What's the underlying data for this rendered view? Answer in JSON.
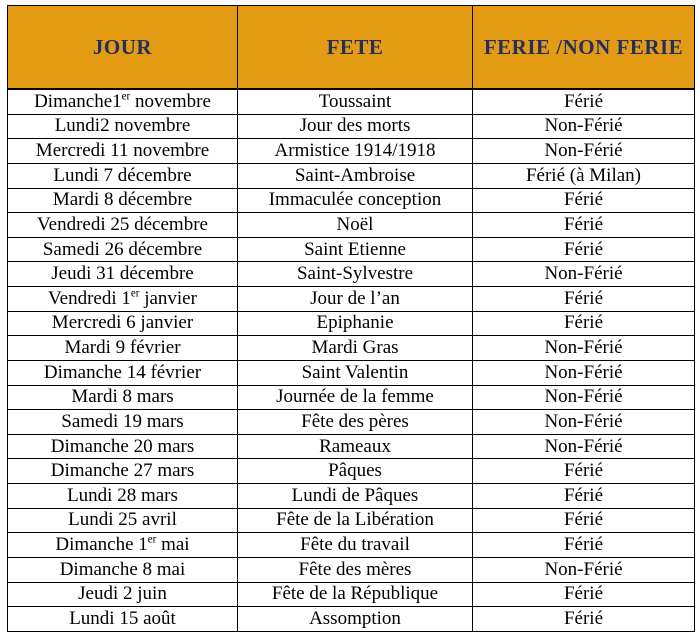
{
  "colors": {
    "header_bg": "#E49B14",
    "header_text": "#232F5E",
    "border": "#000000",
    "body_text": "#000000",
    "page_bg": "#ffffff"
  },
  "table": {
    "header": {
      "columns": [
        {
          "label": "JOUR"
        },
        {
          "label": "FETE"
        },
        {
          "label": "FERIE /NON FERIE"
        }
      ]
    },
    "rows": [
      {
        "jour": "Dimanche1^{er} novembre",
        "fete": "Toussaint",
        "statut": "Férié"
      },
      {
        "jour": "Lundi2 novembre",
        "fete": "Jour des morts",
        "statut": "Non-Férié"
      },
      {
        "jour": "Mercredi 11 novembre",
        "fete": "Armistice 1914/1918",
        "statut": "Non-Férié"
      },
      {
        "jour": "Lundi 7 décembre",
        "fete": "Saint-Ambroise",
        "statut": "Férié (à Milan)"
      },
      {
        "jour": "Mardi 8 décembre",
        "fete": "Immaculée conception",
        "statut": "Férié"
      },
      {
        "jour": "Vendredi 25 décembre",
        "fete": "Noël",
        "statut": "Férié"
      },
      {
        "jour": "Samedi 26 décembre",
        "fete": "Saint Etienne",
        "statut": "Férié"
      },
      {
        "jour": "Jeudi 31 décembre",
        "fete": "Saint-Sylvestre",
        "statut": "Non-Férié"
      },
      {
        "jour": "Vendredi 1^{er} janvier",
        "fete": "Jour de l’an",
        "statut": "Férié"
      },
      {
        "jour": "Mercredi 6 janvier",
        "fete": "Epiphanie",
        "statut": "Férié"
      },
      {
        "jour": "Mardi 9 février",
        "fete": "Mardi Gras",
        "statut": "Non-Férié"
      },
      {
        "jour": "Dimanche 14 février",
        "fete": "Saint Valentin",
        "statut": "Non-Férié"
      },
      {
        "jour": "Mardi 8 mars",
        "fete": "Journée de la femme",
        "statut": "Non-Férié"
      },
      {
        "jour": "Samedi 19 mars",
        "fete": "Fête des pères",
        "statut": "Non-Férié"
      },
      {
        "jour": "Dimanche 20 mars",
        "fete": "Rameaux",
        "statut": "Non-Férié"
      },
      {
        "jour": "Dimanche 27 mars",
        "fete": "Pâques",
        "statut": "Férié"
      },
      {
        "jour": "Lundi 28 mars",
        "fete": "Lundi de Pâques",
        "statut": "Férié"
      },
      {
        "jour": "Lundi 25 avril",
        "fete": "Fête de la Libération",
        "statut": "Férié"
      },
      {
        "jour": "Dimanche 1^{er} mai",
        "fete": "Fête du travail",
        "statut": "Férié"
      },
      {
        "jour": "Dimanche 8 mai",
        "fete": "Fête des mères",
        "statut": "Non-Férié"
      },
      {
        "jour": "Jeudi 2 juin",
        "fete": "Fête de la République",
        "statut": "Férié"
      },
      {
        "jour": "Lundi 15 août",
        "fete": "Assomption",
        "statut": "Férié"
      }
    ]
  }
}
